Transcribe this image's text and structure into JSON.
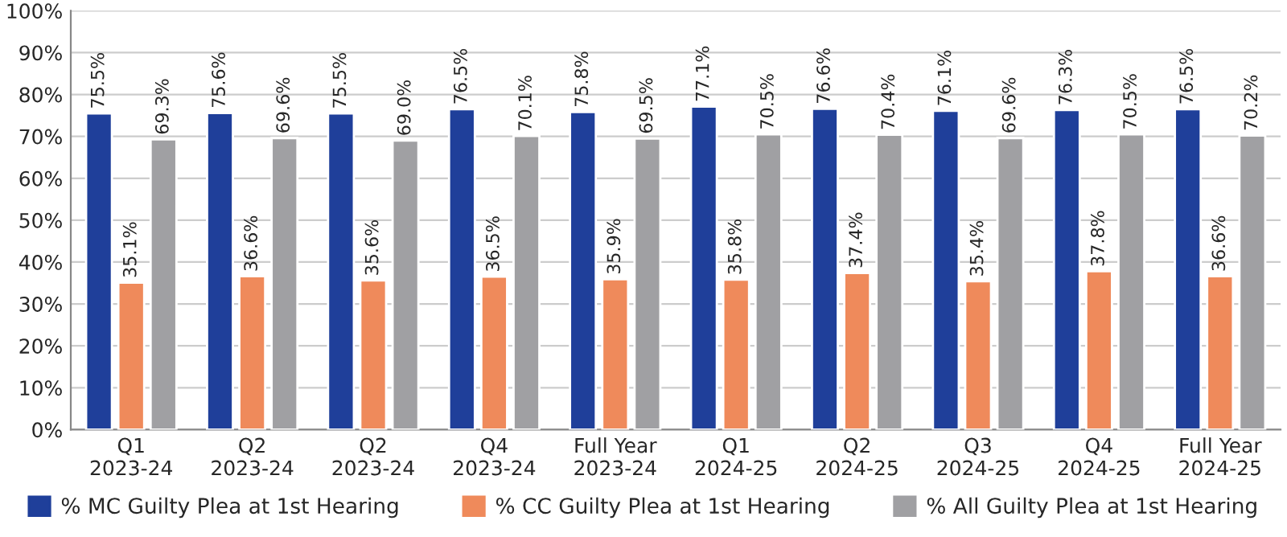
{
  "chart_data": {
    "type": "bar",
    "categories": [
      "Q1\n2023-24",
      "Q2\n2023-24",
      "Q2\n2023-24",
      "Q4\n2023-24",
      "Full Year\n2023-24",
      "Q1\n2024-25",
      "Q2\n2024-25",
      "Q3\n2024-25",
      "Q4\n2024-25",
      "Full Year\n2024-25"
    ],
    "series": [
      {
        "name": "% MC Guilty Plea at 1st Hearing",
        "color": "#1f3f9a",
        "values": [
          75.5,
          75.6,
          75.5,
          76.5,
          75.8,
          77.1,
          76.6,
          76.1,
          76.3,
          76.5
        ],
        "value_labels": [
          "75.5%",
          "75.6%",
          "75.5%",
          "76.5%",
          "75.8%",
          "77.1%",
          "76.6%",
          "76.1%",
          "76.3%",
          "76.5%"
        ]
      },
      {
        "name": "% CC Guilty Plea at 1st Hearing",
        "color": "#ef8a5b",
        "values": [
          35.1,
          36.6,
          35.6,
          36.5,
          35.9,
          35.8,
          37.4,
          35.4,
          37.8,
          36.6
        ],
        "value_labels": [
          "35.1%",
          "36.6%",
          "35.6%",
          "36.5%",
          "35.9%",
          "35.8%",
          "37.4%",
          "35.4%",
          "37.8%",
          "36.6%"
        ]
      },
      {
        "name": "% All Guilty Plea at 1st Hearing",
        "color": "#a0a0a3",
        "values": [
          69.3,
          69.6,
          69.0,
          70.1,
          69.5,
          70.5,
          70.4,
          69.6,
          70.5,
          70.2
        ],
        "value_labels": [
          "69.3%",
          "69.6%",
          "69.0%",
          "70.1%",
          "69.5%",
          "70.5%",
          "70.4%",
          "69.6%",
          "70.5%",
          "70.2%"
        ]
      }
    ],
    "ylim": [
      0,
      100
    ],
    "yticks": [
      {
        "value": 0,
        "label": "0%"
      },
      {
        "value": 10,
        "label": "10%"
      },
      {
        "value": 20,
        "label": "20%"
      },
      {
        "value": 30,
        "label": "30%"
      },
      {
        "value": 40,
        "label": "40%"
      },
      {
        "value": 50,
        "label": "50%"
      },
      {
        "value": 60,
        "label": "60%"
      },
      {
        "value": 70,
        "label": "70%"
      },
      {
        "value": 80,
        "label": "80%"
      },
      {
        "value": 90,
        "label": "90%"
      },
      {
        "value": 100,
        "label": "100%"
      }
    ],
    "grid": "y",
    "legend": "bottom"
  }
}
